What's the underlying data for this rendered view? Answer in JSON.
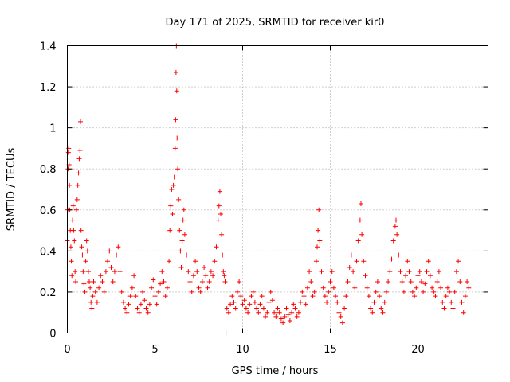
{
  "chart_data": {
    "type": "scatter",
    "title": "Day 171 of 2025, SRMTID for receiver kir0",
    "xlabel": "GPS time / hours",
    "ylabel": "SRMTID / TECUs",
    "xlim": [
      0,
      24
    ],
    "ylim": [
      0,
      1.4
    ],
    "x_ticks": [
      0,
      5,
      10,
      15,
      20
    ],
    "x_tick_labels": [
      "0",
      "5",
      "10",
      "15",
      "20"
    ],
    "y_ticks": [
      0,
      0.2,
      0.4,
      0.6,
      0.8,
      1.0,
      1.2,
      1.4
    ],
    "y_tick_labels": [
      "0",
      "0.2",
      "0.4",
      "0.6",
      "0.8",
      "1",
      "1.2",
      "1.4"
    ],
    "grid": true,
    "marker": "plus",
    "series": [
      {
        "name": "SRMTID",
        "color": "#ff0000",
        "points": [
          [
            0.0,
            0.45
          ],
          [
            0.02,
            0.6
          ],
          [
            0.04,
            0.8
          ],
          [
            0.06,
            0.88
          ],
          [
            0.08,
            0.9
          ],
          [
            0.1,
            0.82
          ],
          [
            0.12,
            0.72
          ],
          [
            0.14,
            0.6
          ],
          [
            0.17,
            0.5
          ],
          [
            0.2,
            0.42
          ],
          [
            0.23,
            0.35
          ],
          [
            0.26,
            0.28
          ],
          [
            0.3,
            0.55
          ],
          [
            0.33,
            0.62
          ],
          [
            0.36,
            0.5
          ],
          [
            0.4,
            0.45
          ],
          [
            0.44,
            0.3
          ],
          [
            0.48,
            0.25
          ],
          [
            0.52,
            0.6
          ],
          [
            0.56,
            0.65
          ],
          [
            0.6,
            0.72
          ],
          [
            0.64,
            0.78
          ],
          [
            0.68,
            0.85
          ],
          [
            0.72,
            0.89
          ],
          [
            0.75,
            1.03
          ],
          [
            0.78,
            0.5
          ],
          [
            0.82,
            0.42
          ],
          [
            0.86,
            0.38
          ],
          [
            0.9,
            0.3
          ],
          [
            0.95,
            0.24
          ],
          [
            1.0,
            0.2
          ],
          [
            1.05,
            0.35
          ],
          [
            1.1,
            0.45
          ],
          [
            1.15,
            0.4
          ],
          [
            1.2,
            0.3
          ],
          [
            1.25,
            0.25
          ],
          [
            1.3,
            0.22
          ],
          [
            1.35,
            0.15
          ],
          [
            1.4,
            0.12
          ],
          [
            1.45,
            0.18
          ],
          [
            1.5,
            0.25
          ],
          [
            1.6,
            0.2
          ],
          [
            1.7,
            0.15
          ],
          [
            1.8,
            0.22
          ],
          [
            1.9,
            0.28
          ],
          [
            2.0,
            0.25
          ],
          [
            2.1,
            0.2
          ],
          [
            2.2,
            0.3
          ],
          [
            2.3,
            0.35
          ],
          [
            2.4,
            0.4
          ],
          [
            2.5,
            0.32
          ],
          [
            2.6,
            0.25
          ],
          [
            2.7,
            0.3
          ],
          [
            2.8,
            0.38
          ],
          [
            2.9,
            0.42
          ],
          [
            3.0,
            0.3
          ],
          [
            3.1,
            0.2
          ],
          [
            3.2,
            0.15
          ],
          [
            3.3,
            0.12
          ],
          [
            3.4,
            0.1
          ],
          [
            3.5,
            0.14
          ],
          [
            3.6,
            0.18
          ],
          [
            3.7,
            0.22
          ],
          [
            3.8,
            0.28
          ],
          [
            3.9,
            0.18
          ],
          [
            4.0,
            0.12
          ],
          [
            4.1,
            0.1
          ],
          [
            4.2,
            0.14
          ],
          [
            4.3,
            0.2
          ],
          [
            4.4,
            0.16
          ],
          [
            4.5,
            0.12
          ],
          [
            4.6,
            0.1
          ],
          [
            4.7,
            0.14
          ],
          [
            4.8,
            0.22
          ],
          [
            4.9,
            0.26
          ],
          [
            5.0,
            0.18
          ],
          [
            5.1,
            0.14
          ],
          [
            5.2,
            0.2
          ],
          [
            5.3,
            0.24
          ],
          [
            5.4,
            0.3
          ],
          [
            5.5,
            0.25
          ],
          [
            5.6,
            0.18
          ],
          [
            5.7,
            0.22
          ],
          [
            5.8,
            0.35
          ],
          [
            5.85,
            0.5
          ],
          [
            5.9,
            0.62
          ],
          [
            5.95,
            0.7
          ],
          [
            6.0,
            0.58
          ],
          [
            6.05,
            0.72
          ],
          [
            6.1,
            0.76
          ],
          [
            6.15,
            0.9
          ],
          [
            6.18,
            1.04
          ],
          [
            6.2,
            1.27
          ],
          [
            6.22,
            1.4
          ],
          [
            6.24,
            1.18
          ],
          [
            6.26,
            0.95
          ],
          [
            6.3,
            0.8
          ],
          [
            6.35,
            0.65
          ],
          [
            6.4,
            0.5
          ],
          [
            6.45,
            0.4
          ],
          [
            6.5,
            0.32
          ],
          [
            6.55,
            0.45
          ],
          [
            6.6,
            0.55
          ],
          [
            6.65,
            0.6
          ],
          [
            6.7,
            0.48
          ],
          [
            6.8,
            0.38
          ],
          [
            6.9,
            0.3
          ],
          [
            7.0,
            0.25
          ],
          [
            7.1,
            0.2
          ],
          [
            7.2,
            0.28
          ],
          [
            7.3,
            0.35
          ],
          [
            7.4,
            0.3
          ],
          [
            7.5,
            0.22
          ],
          [
            7.6,
            0.2
          ],
          [
            7.7,
            0.25
          ],
          [
            7.8,
            0.32
          ],
          [
            7.9,
            0.28
          ],
          [
            8.0,
            0.22
          ],
          [
            8.1,
            0.25
          ],
          [
            8.2,
            0.3
          ],
          [
            8.3,
            0.28
          ],
          [
            8.4,
            0.35
          ],
          [
            8.5,
            0.42
          ],
          [
            8.6,
            0.55
          ],
          [
            8.65,
            0.62
          ],
          [
            8.7,
            0.69
          ],
          [
            8.75,
            0.58
          ],
          [
            8.8,
            0.48
          ],
          [
            8.85,
            0.38
          ],
          [
            8.9,
            0.3
          ],
          [
            8.95,
            0.28
          ],
          [
            9.0,
            0.25
          ],
          [
            9.05,
            0.0
          ],
          [
            9.1,
            0.12
          ],
          [
            9.2,
            0.1
          ],
          [
            9.3,
            0.14
          ],
          [
            9.4,
            0.18
          ],
          [
            9.5,
            0.15
          ],
          [
            9.6,
            0.12
          ],
          [
            9.7,
            0.2
          ],
          [
            9.8,
            0.25
          ],
          [
            9.9,
            0.18
          ],
          [
            10.0,
            0.14
          ],
          [
            10.1,
            0.16
          ],
          [
            10.2,
            0.12
          ],
          [
            10.3,
            0.1
          ],
          [
            10.4,
            0.14
          ],
          [
            10.5,
            0.18
          ],
          [
            10.6,
            0.2
          ],
          [
            10.7,
            0.15
          ],
          [
            10.8,
            0.12
          ],
          [
            10.9,
            0.1
          ],
          [
            11.0,
            0.14
          ],
          [
            11.1,
            0.18
          ],
          [
            11.2,
            0.12
          ],
          [
            11.3,
            0.08
          ],
          [
            11.4,
            0.1
          ],
          [
            11.5,
            0.15
          ],
          [
            11.6,
            0.2
          ],
          [
            11.7,
            0.16
          ],
          [
            11.8,
            0.1
          ],
          [
            11.9,
            0.08
          ],
          [
            12.0,
            0.12
          ],
          [
            12.1,
            0.1
          ],
          [
            12.2,
            0.07
          ],
          [
            12.3,
            0.05
          ],
          [
            12.4,
            0.08
          ],
          [
            12.5,
            0.12
          ],
          [
            12.6,
            0.09
          ],
          [
            12.7,
            0.06
          ],
          [
            12.8,
            0.1
          ],
          [
            12.9,
            0.14
          ],
          [
            13.0,
            0.12
          ],
          [
            13.1,
            0.08
          ],
          [
            13.2,
            0.1
          ],
          [
            13.3,
            0.15
          ],
          [
            13.4,
            0.2
          ],
          [
            13.5,
            0.18
          ],
          [
            13.6,
            0.14
          ],
          [
            13.7,
            0.22
          ],
          [
            13.8,
            0.3
          ],
          [
            13.9,
            0.25
          ],
          [
            14.0,
            0.18
          ],
          [
            14.1,
            0.2
          ],
          [
            14.2,
            0.35
          ],
          [
            14.25,
            0.42
          ],
          [
            14.3,
            0.5
          ],
          [
            14.35,
            0.6
          ],
          [
            14.4,
            0.45
          ],
          [
            14.5,
            0.3
          ],
          [
            14.6,
            0.22
          ],
          [
            14.7,
            0.18
          ],
          [
            14.8,
            0.15
          ],
          [
            14.9,
            0.2
          ],
          [
            15.0,
            0.25
          ],
          [
            15.1,
            0.3
          ],
          [
            15.2,
            0.22
          ],
          [
            15.3,
            0.18
          ],
          [
            15.4,
            0.15
          ],
          [
            15.5,
            0.1
          ],
          [
            15.6,
            0.08
          ],
          [
            15.7,
            0.05
          ],
          [
            15.8,
            0.12
          ],
          [
            15.9,
            0.18
          ],
          [
            16.0,
            0.25
          ],
          [
            16.1,
            0.32
          ],
          [
            16.2,
            0.38
          ],
          [
            16.3,
            0.3
          ],
          [
            16.4,
            0.22
          ],
          [
            16.5,
            0.35
          ],
          [
            16.6,
            0.45
          ],
          [
            16.7,
            0.55
          ],
          [
            16.75,
            0.63
          ],
          [
            16.8,
            0.48
          ],
          [
            16.9,
            0.35
          ],
          [
            17.0,
            0.28
          ],
          [
            17.1,
            0.22
          ],
          [
            17.2,
            0.18
          ],
          [
            17.3,
            0.12
          ],
          [
            17.4,
            0.1
          ],
          [
            17.5,
            0.15
          ],
          [
            17.6,
            0.2
          ],
          [
            17.7,
            0.25
          ],
          [
            17.8,
            0.18
          ],
          [
            17.9,
            0.12
          ],
          [
            18.0,
            0.1
          ],
          [
            18.1,
            0.15
          ],
          [
            18.2,
            0.2
          ],
          [
            18.3,
            0.25
          ],
          [
            18.4,
            0.3
          ],
          [
            18.5,
            0.36
          ],
          [
            18.6,
            0.45
          ],
          [
            18.7,
            0.52
          ],
          [
            18.75,
            0.55
          ],
          [
            18.8,
            0.48
          ],
          [
            18.9,
            0.38
          ],
          [
            19.0,
            0.3
          ],
          [
            19.1,
            0.25
          ],
          [
            19.2,
            0.2
          ],
          [
            19.3,
            0.28
          ],
          [
            19.4,
            0.35
          ],
          [
            19.5,
            0.3
          ],
          [
            19.6,
            0.25
          ],
          [
            19.7,
            0.2
          ],
          [
            19.8,
            0.18
          ],
          [
            19.9,
            0.22
          ],
          [
            20.0,
            0.28
          ],
          [
            20.1,
            0.3
          ],
          [
            20.2,
            0.25
          ],
          [
            20.3,
            0.2
          ],
          [
            20.4,
            0.24
          ],
          [
            20.5,
            0.3
          ],
          [
            20.6,
            0.35
          ],
          [
            20.7,
            0.28
          ],
          [
            20.8,
            0.22
          ],
          [
            20.9,
            0.2
          ],
          [
            21.0,
            0.18
          ],
          [
            21.1,
            0.25
          ],
          [
            21.2,
            0.3
          ],
          [
            21.3,
            0.22
          ],
          [
            21.4,
            0.15
          ],
          [
            21.5,
            0.12
          ],
          [
            21.6,
            0.18
          ],
          [
            21.7,
            0.22
          ],
          [
            21.8,
            0.2
          ],
          [
            21.9,
            0.15
          ],
          [
            22.0,
            0.12
          ],
          [
            22.1,
            0.2
          ],
          [
            22.2,
            0.3
          ],
          [
            22.3,
            0.35
          ],
          [
            22.4,
            0.25
          ],
          [
            22.5,
            0.15
          ],
          [
            22.6,
            0.1
          ],
          [
            22.7,
            0.18
          ],
          [
            22.8,
            0.25
          ],
          [
            22.9,
            0.22
          ]
        ]
      }
    ]
  }
}
